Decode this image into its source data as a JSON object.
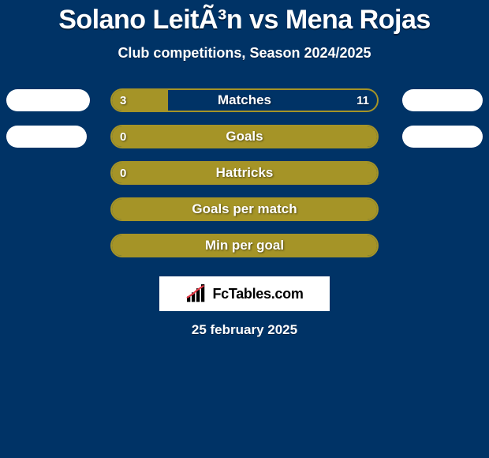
{
  "background_color": "#003366",
  "title": "Solano LeitÃ³n vs Mena Rojas",
  "subtitle": "Club competitions, Season 2024/2025",
  "bubble_color": "#ffffff",
  "rows": [
    {
      "label": "Matches",
      "left_value": "3",
      "right_value": "11",
      "border_color": "#a59427",
      "fill_color": "#a59427",
      "fill_pct": 21,
      "left_bubble_width": 106,
      "right_bubble_width": 102
    },
    {
      "label": "Goals",
      "left_value": "0",
      "right_value": "",
      "border_color": "#a59427",
      "fill_color": "#a59427",
      "fill_pct": 100,
      "left_bubble_width": 102,
      "right_bubble_width": 102
    },
    {
      "label": "Hattricks",
      "left_value": "0",
      "right_value": "",
      "border_color": "#a59427",
      "fill_color": "#a59427",
      "fill_pct": 100,
      "left_bubble_width": 0,
      "right_bubble_width": 0
    },
    {
      "label": "Goals per match",
      "left_value": "",
      "right_value": "",
      "border_color": "#a59427",
      "fill_color": "#a59427",
      "fill_pct": 100,
      "left_bubble_width": 0,
      "right_bubble_width": 0
    },
    {
      "label": "Min per goal",
      "left_value": "",
      "right_value": "",
      "border_color": "#a59427",
      "fill_color": "#a59427",
      "fill_pct": 100,
      "left_bubble_width": 0,
      "right_bubble_width": 0
    }
  ],
  "brand": "FcTables.com",
  "date": "25 february 2025"
}
